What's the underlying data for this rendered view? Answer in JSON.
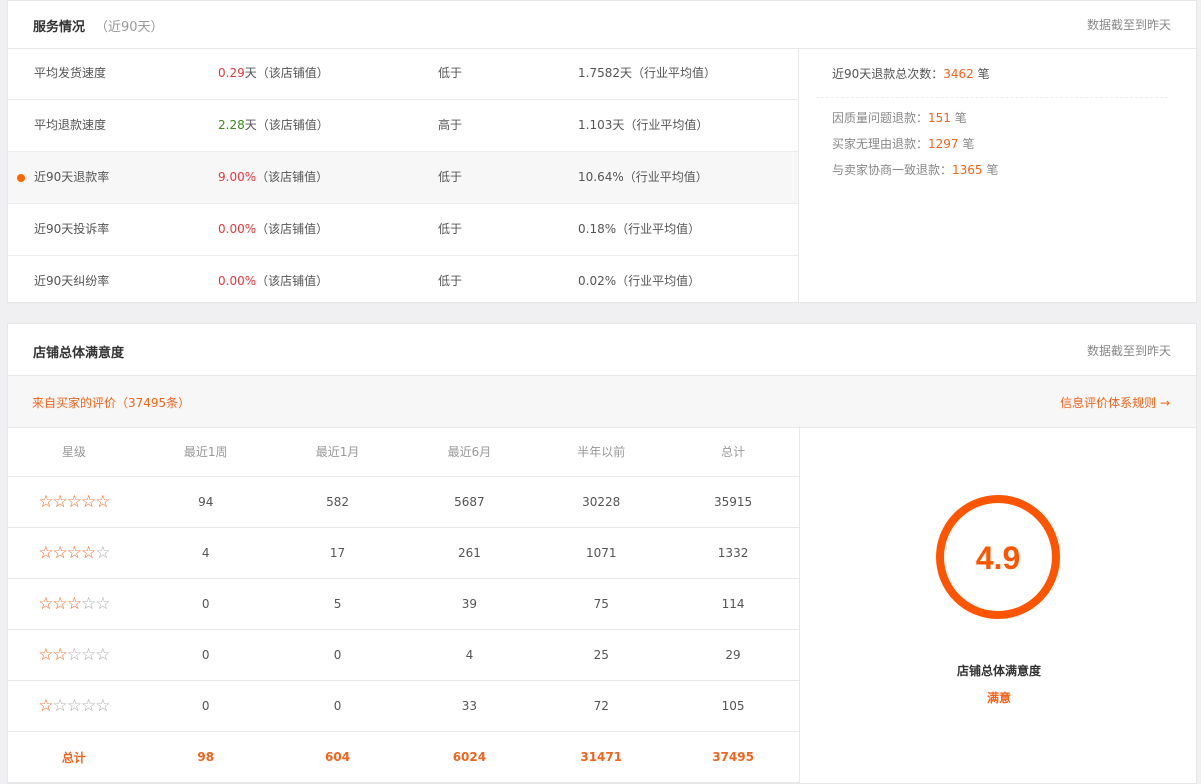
{
  "service": {
    "title": "服务情况",
    "subtitle": "（近90天）",
    "note": "数据截至到昨天",
    "rows": [
      {
        "name": "平均发货速度",
        "value": "0.29",
        "unit": "天（该店铺值）",
        "color": "red",
        "compare": "低于",
        "industry": "1.7582天（行业平均值）"
      },
      {
        "name": "平均退款速度",
        "value": "2.28",
        "unit": "天（该店铺值）",
        "color": "green",
        "compare": "高于",
        "industry": "1.103天（行业平均值）"
      },
      {
        "name": "近90天退款率",
        "value": "9.00%",
        "unit": "（该店铺值）",
        "color": "red",
        "compare": "低于",
        "industry": "10.64%（行业平均值）",
        "highlighted": true
      },
      {
        "name": "近90天投诉率",
        "value": "0.00%",
        "unit": "（该店铺值）",
        "color": "red",
        "compare": "低于",
        "industry": "0.18%（行业平均值）"
      },
      {
        "name": "近90天纠纷率",
        "value": "0.00%",
        "unit": "（该店铺值）",
        "color": "red",
        "compare": "低于",
        "industry": "0.02%（行业平均值）"
      }
    ],
    "refund": {
      "total_label": "近90天退款总次数：",
      "total": "3462",
      "unit": "笔",
      "items": [
        {
          "label": "因质量问题退款：",
          "value": "151",
          "unit": "笔"
        },
        {
          "label": "买家无理由退款：",
          "value": "1297",
          "unit": "笔"
        },
        {
          "label": "与卖家协商一致退款：",
          "value": "1365",
          "unit": "笔"
        }
      ]
    }
  },
  "satisfaction": {
    "title": "店铺总体满意度",
    "note": "数据截至到昨天",
    "source": "来自买家的评价（37495条）",
    "rules_link": "信息评价体系规则 →",
    "headers": [
      "星级",
      "最近1周",
      "最近1月",
      "最近6月",
      "半年以前",
      "总计"
    ],
    "rows": [
      {
        "stars": 5,
        "values": [
          "94",
          "582",
          "5687",
          "30228",
          "35915"
        ]
      },
      {
        "stars": 4,
        "values": [
          "4",
          "17",
          "261",
          "1071",
          "1332"
        ]
      },
      {
        "stars": 3,
        "values": [
          "0",
          "5",
          "39",
          "75",
          "114"
        ]
      },
      {
        "stars": 2,
        "values": [
          "0",
          "0",
          "4",
          "25",
          "29"
        ]
      },
      {
        "stars": 1,
        "values": [
          "0",
          "0",
          "33",
          "72",
          "105"
        ]
      }
    ],
    "total": {
      "label": "总计",
      "values": [
        "98",
        "604",
        "6024",
        "31471",
        "37495"
      ]
    },
    "score": "4.9",
    "score_label": "店铺总体满意度",
    "rating": "满意",
    "accent": "#ff5500"
  }
}
